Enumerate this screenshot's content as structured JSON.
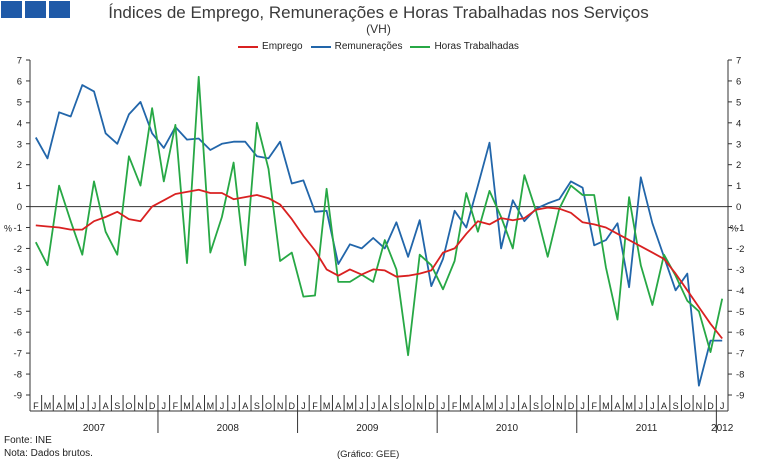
{
  "header": {
    "title": "Índices de Emprego, Remunerações e Horas Trabalhadas nos Serviços",
    "subtitle": "(VH)"
  },
  "legend": [
    "Emprego",
    "Remunerações",
    "Horas Trabalhadas"
  ],
  "footer": {
    "source": "Fonte: INE",
    "note": "Nota: Dados brutos.",
    "credit": "(Gráfico: GEE)"
  },
  "colors": {
    "logo": "#1f5aa8",
    "emprego": "#d92121",
    "remuneracoes": "#2266aa",
    "horas": "#27a845"
  },
  "chart_data": {
    "type": "line",
    "y_unit_left": "%",
    "y_unit_right": "%",
    "ylim": [
      -9,
      7
    ],
    "yticks": [
      7,
      6,
      5,
      4,
      3,
      2,
      1,
      0,
      -1,
      -2,
      -3,
      -4,
      -5,
      -6,
      -7,
      -8,
      -9
    ],
    "grid": false,
    "legend_position": "top",
    "month_labels": [
      "F",
      "M",
      "A",
      "M",
      "J",
      "J",
      "A",
      "S",
      "O",
      "N",
      "D",
      "J",
      "F",
      "M",
      "A",
      "M",
      "J",
      "J",
      "A",
      "S",
      "O",
      "N",
      "D",
      "J",
      "F",
      "M",
      "A",
      "M",
      "J",
      "J",
      "A",
      "S",
      "O",
      "N",
      "D",
      "J",
      "F",
      "M",
      "A",
      "M",
      "J",
      "J",
      "A",
      "S",
      "O",
      "N",
      "D",
      "J",
      "F",
      "M",
      "A",
      "M",
      "J",
      "J",
      "A",
      "S",
      "O",
      "N",
      "D",
      "J"
    ],
    "year_labels": [
      "2007",
      "2008",
      "2009",
      "2010",
      "2011",
      "2012"
    ],
    "x": [
      "2007-02",
      "2007-03",
      "2007-04",
      "2007-05",
      "2007-06",
      "2007-07",
      "2007-08",
      "2007-09",
      "2007-10",
      "2007-11",
      "2007-12",
      "2008-01",
      "2008-02",
      "2008-03",
      "2008-04",
      "2008-05",
      "2008-06",
      "2008-07",
      "2008-08",
      "2008-09",
      "2008-10",
      "2008-11",
      "2008-12",
      "2009-01",
      "2009-02",
      "2009-03",
      "2009-04",
      "2009-05",
      "2009-06",
      "2009-07",
      "2009-08",
      "2009-09",
      "2009-10",
      "2009-11",
      "2009-12",
      "2010-01",
      "2010-02",
      "2010-03",
      "2010-04",
      "2010-05",
      "2010-06",
      "2010-07",
      "2010-08",
      "2010-09",
      "2010-10",
      "2010-11",
      "2010-12",
      "2011-01",
      "2011-02",
      "2011-03",
      "2011-04",
      "2011-05",
      "2011-06",
      "2011-07",
      "2011-08",
      "2011-09",
      "2011-10",
      "2011-11",
      "2011-12",
      "2012-01"
    ],
    "series": [
      {
        "name": "Emprego",
        "values": [
          -0.9,
          -0.95,
          -1.0,
          -1.1,
          -1.1,
          -0.7,
          -0.5,
          -0.25,
          -0.6,
          -0.7,
          0.0,
          0.3,
          0.6,
          0.7,
          0.8,
          0.65,
          0.65,
          0.35,
          0.45,
          0.55,
          0.4,
          0.1,
          -0.6,
          -1.4,
          -2.1,
          -3.0,
          -3.3,
          -3.0,
          -3.25,
          -3.0,
          -3.05,
          -3.35,
          -3.3,
          -3.2,
          -3.05,
          -2.2,
          -2.0,
          -1.3,
          -0.7,
          -0.85,
          -0.55,
          -0.65,
          -0.55,
          -0.15,
          -0.05,
          -0.1,
          -0.3,
          -0.75,
          -0.85,
          -1.0,
          -1.3,
          -1.6,
          -1.9,
          -2.2,
          -2.5,
          -3.2,
          -4.0,
          -4.8,
          -5.6,
          -6.3
        ]
      },
      {
        "name": "Remunerações",
        "values": [
          3.3,
          2.3,
          4.5,
          4.3,
          5.8,
          5.5,
          3.5,
          3.0,
          4.4,
          5.0,
          3.5,
          2.8,
          3.8,
          3.2,
          3.25,
          2.7,
          3.0,
          3.1,
          3.1,
          2.4,
          2.3,
          3.1,
          1.1,
          1.25,
          -0.25,
          -0.2,
          -2.75,
          -1.8,
          -2.0,
          -1.5,
          -2.0,
          -0.75,
          -2.4,
          -0.65,
          -3.8,
          -2.5,
          -0.2,
          -1.0,
          1.0,
          3.05,
          -2.0,
          0.3,
          -0.7,
          -0.1,
          0.15,
          0.35,
          1.2,
          0.9,
          -1.85,
          -1.6,
          -0.8,
          -3.85,
          1.4,
          -0.8,
          -2.4,
          -4.0,
          -3.2,
          -8.55,
          -6.4,
          -6.4
        ]
      },
      {
        "name": "Horas Trabalhadas",
        "values": [
          -1.7,
          -2.8,
          1.0,
          -0.7,
          -2.3,
          1.2,
          -1.2,
          -2.3,
          2.4,
          1.0,
          4.7,
          1.2,
          3.9,
          -2.7,
          6.2,
          -2.2,
          -0.5,
          2.1,
          -2.8,
          4.0,
          1.8,
          -2.6,
          -2.2,
          -4.3,
          -4.25,
          0.85,
          -3.6,
          -3.6,
          -3.25,
          -3.6,
          -1.6,
          -3.0,
          -7.1,
          -2.3,
          -2.8,
          -3.95,
          -2.6,
          0.65,
          -1.2,
          0.75,
          -0.5,
          -2.0,
          1.5,
          -0.2,
          -2.4,
          -0.1,
          1.0,
          0.55,
          0.55,
          -2.9,
          -5.4,
          0.45,
          -2.8,
          -4.7,
          -2.3,
          -3.3,
          -4.5,
          -5.0,
          -6.95,
          -4.4
        ]
      }
    ]
  }
}
